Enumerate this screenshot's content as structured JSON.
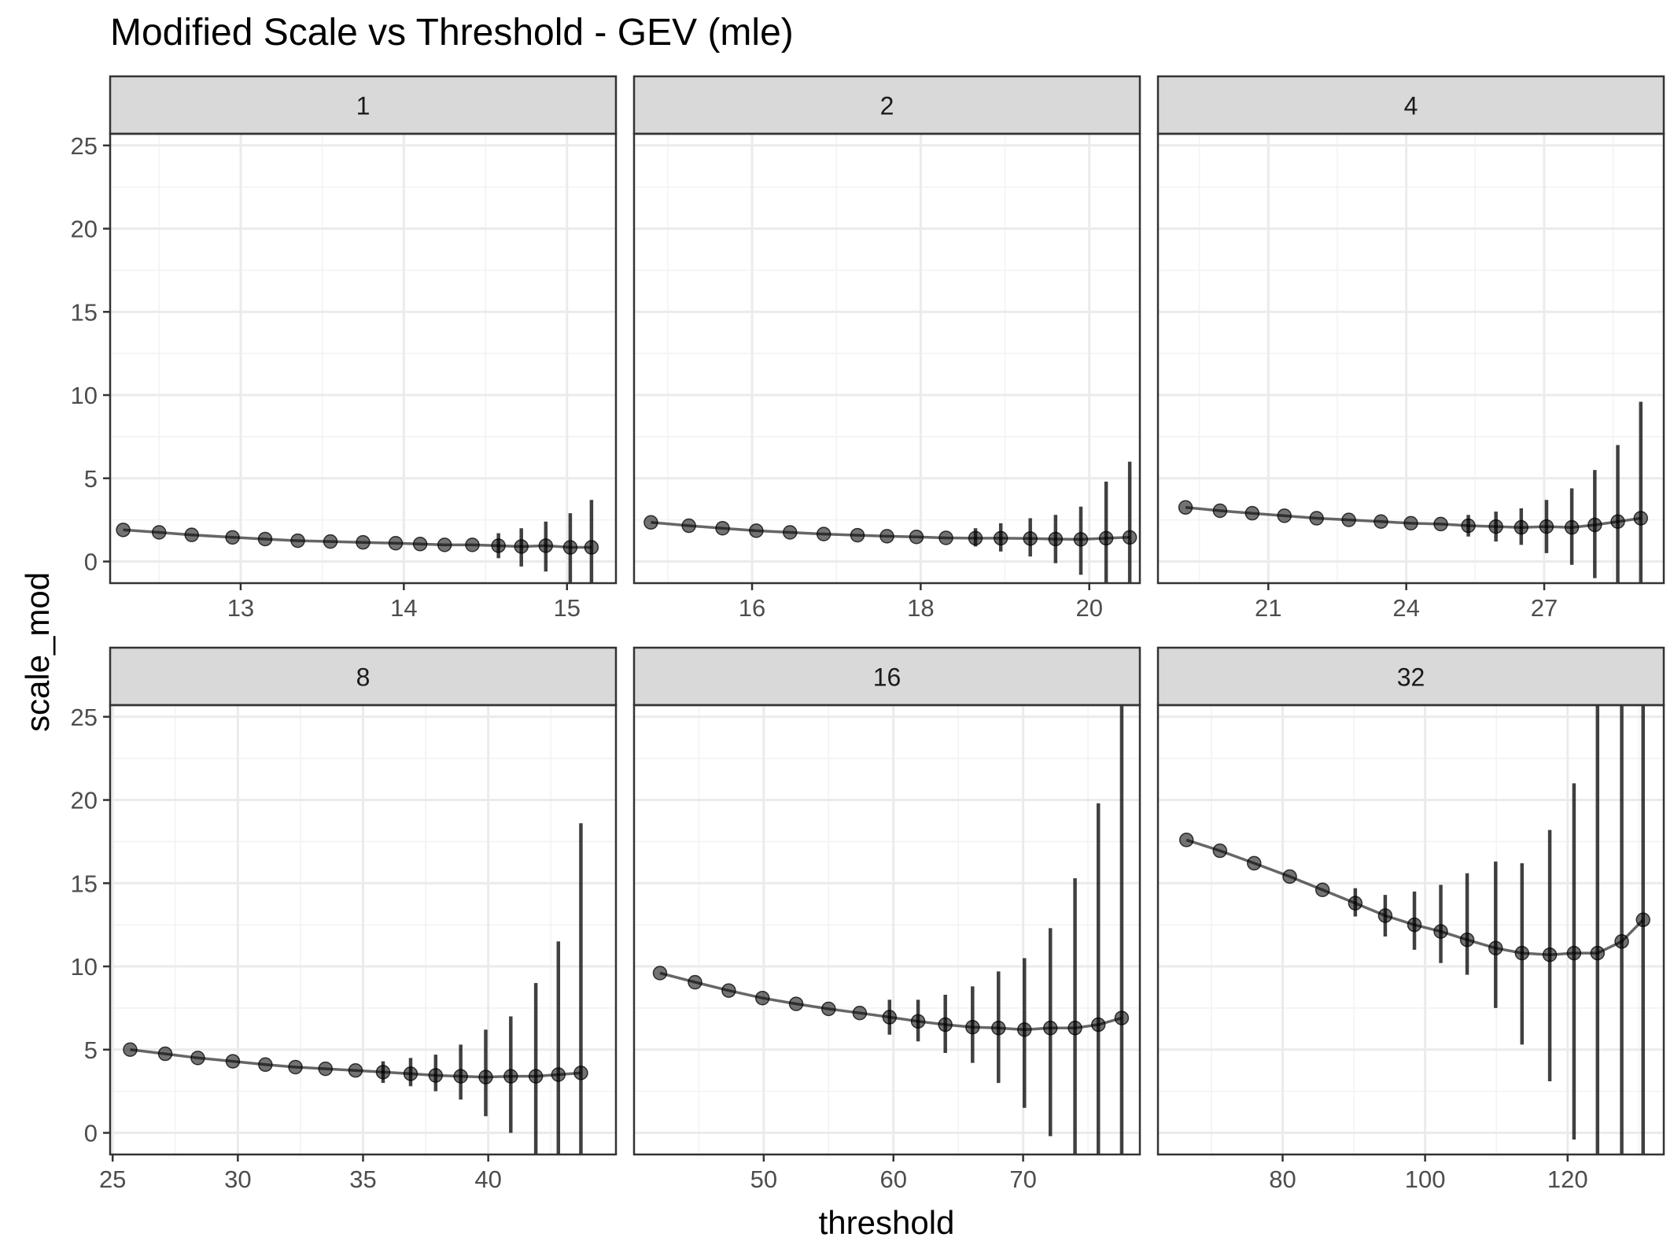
{
  "chart_data": {
    "type": "scatter",
    "title": "Modified Scale vs Threshold - GEV (mle)",
    "xlabel": "threshold",
    "ylabel": "scale_mod",
    "grid": true,
    "y_ticks": [
      0,
      5,
      10,
      15,
      20,
      25
    ],
    "y_range": [
      -1.3,
      25.7
    ],
    "panels": [
      {
        "strip": "1",
        "x_range": [
          12.2,
          15.3
        ],
        "x_ticks": [
          13,
          14,
          15
        ],
        "points": [
          [
            12.28,
            1.9
          ],
          [
            12.5,
            1.75
          ],
          [
            12.7,
            1.6
          ],
          [
            12.95,
            1.45
          ],
          [
            13.15,
            1.35
          ],
          [
            13.35,
            1.25
          ],
          [
            13.55,
            1.2
          ],
          [
            13.75,
            1.15
          ],
          [
            13.95,
            1.1
          ],
          [
            14.1,
            1.05
          ],
          [
            14.25,
            1.0
          ],
          [
            14.42,
            1.0
          ],
          [
            14.58,
            0.95
          ],
          [
            14.72,
            0.9
          ],
          [
            14.87,
            0.95
          ],
          [
            15.02,
            0.85
          ],
          [
            15.15,
            0.85
          ]
        ],
        "errorbars": [
          [
            14.58,
            0.2,
            1.7
          ],
          [
            14.72,
            -0.3,
            2.0
          ],
          [
            14.87,
            -0.6,
            2.4
          ],
          [
            15.02,
            -1.3,
            2.9
          ],
          [
            15.15,
            -1.3,
            3.7
          ]
        ]
      },
      {
        "strip": "2",
        "x_range": [
          14.6,
          20.6
        ],
        "x_ticks": [
          16,
          18,
          20
        ],
        "points": [
          [
            14.8,
            2.35
          ],
          [
            15.25,
            2.15
          ],
          [
            15.65,
            2.0
          ],
          [
            16.05,
            1.85
          ],
          [
            16.45,
            1.75
          ],
          [
            16.85,
            1.65
          ],
          [
            17.25,
            1.58
          ],
          [
            17.6,
            1.52
          ],
          [
            17.95,
            1.48
          ],
          [
            18.3,
            1.42
          ],
          [
            18.65,
            1.4
          ],
          [
            18.95,
            1.4
          ],
          [
            19.3,
            1.38
          ],
          [
            19.6,
            1.35
          ],
          [
            19.9,
            1.33
          ],
          [
            20.2,
            1.4
          ],
          [
            20.48,
            1.45
          ]
        ],
        "errorbars": [
          [
            18.65,
            0.9,
            2.0
          ],
          [
            18.95,
            0.6,
            2.3
          ],
          [
            19.3,
            0.3,
            2.6
          ],
          [
            19.6,
            -0.1,
            2.8
          ],
          [
            19.9,
            -0.8,
            3.3
          ],
          [
            20.2,
            -1.3,
            4.8
          ],
          [
            20.48,
            -1.3,
            6.0
          ]
        ]
      },
      {
        "strip": "4",
        "x_range": [
          18.6,
          29.6
        ],
        "x_ticks": [
          21,
          24,
          27
        ],
        "points": [
          [
            19.2,
            3.25
          ],
          [
            19.95,
            3.05
          ],
          [
            20.65,
            2.9
          ],
          [
            21.35,
            2.75
          ],
          [
            22.05,
            2.6
          ],
          [
            22.75,
            2.5
          ],
          [
            23.45,
            2.4
          ],
          [
            24.1,
            2.3
          ],
          [
            24.75,
            2.25
          ],
          [
            25.35,
            2.15
          ],
          [
            25.95,
            2.1
          ],
          [
            26.5,
            2.05
          ],
          [
            27.05,
            2.1
          ],
          [
            27.6,
            2.05
          ],
          [
            28.1,
            2.2
          ],
          [
            28.6,
            2.4
          ],
          [
            29.1,
            2.6
          ]
        ],
        "errorbars": [
          [
            25.35,
            1.5,
            2.8
          ],
          [
            25.95,
            1.2,
            3.0
          ],
          [
            26.5,
            1.0,
            3.2
          ],
          [
            27.05,
            0.5,
            3.7
          ],
          [
            27.6,
            -0.2,
            4.4
          ],
          [
            28.1,
            -1.0,
            5.5
          ],
          [
            28.6,
            -1.3,
            7.0
          ],
          [
            29.1,
            -1.3,
            9.6
          ]
        ]
      },
      {
        "strip": "8",
        "x_range": [
          24.9,
          45.1
        ],
        "x_ticks": [
          25,
          30,
          35,
          40
        ],
        "points": [
          [
            25.7,
            5.0
          ],
          [
            27.1,
            4.75
          ],
          [
            28.4,
            4.5
          ],
          [
            29.8,
            4.3
          ],
          [
            31.1,
            4.1
          ],
          [
            32.3,
            3.95
          ],
          [
            33.5,
            3.85
          ],
          [
            34.7,
            3.75
          ],
          [
            35.8,
            3.65
          ],
          [
            36.9,
            3.55
          ],
          [
            37.9,
            3.45
          ],
          [
            38.9,
            3.4
          ],
          [
            39.9,
            3.35
          ],
          [
            40.9,
            3.4
          ],
          [
            41.9,
            3.4
          ],
          [
            42.8,
            3.5
          ],
          [
            43.7,
            3.6
          ]
        ],
        "errorbars": [
          [
            35.8,
            3.0,
            4.3
          ],
          [
            36.9,
            2.8,
            4.5
          ],
          [
            37.9,
            2.5,
            4.7
          ],
          [
            38.9,
            2.0,
            5.3
          ],
          [
            39.9,
            1.0,
            6.2
          ],
          [
            40.9,
            0.0,
            7.0
          ],
          [
            41.9,
            -1.3,
            9.0
          ],
          [
            42.8,
            -1.3,
            11.5
          ],
          [
            43.7,
            -1.3,
            18.6
          ]
        ]
      },
      {
        "strip": "16",
        "x_range": [
          40.0,
          79.0
        ],
        "x_ticks": [
          50,
          60,
          70
        ],
        "points": [
          [
            42.0,
            9.6
          ],
          [
            44.7,
            9.05
          ],
          [
            47.3,
            8.55
          ],
          [
            49.9,
            8.1
          ],
          [
            52.5,
            7.75
          ],
          [
            55.0,
            7.45
          ],
          [
            57.4,
            7.2
          ],
          [
            59.7,
            6.95
          ],
          [
            61.9,
            6.7
          ],
          [
            64.0,
            6.5
          ],
          [
            66.1,
            6.35
          ],
          [
            68.1,
            6.3
          ],
          [
            70.1,
            6.2
          ],
          [
            72.1,
            6.3
          ],
          [
            74.0,
            6.3
          ],
          [
            75.8,
            6.5
          ],
          [
            77.6,
            6.9
          ]
        ],
        "errorbars": [
          [
            59.7,
            5.9,
            8.0
          ],
          [
            61.9,
            5.5,
            8.0
          ],
          [
            64.0,
            4.8,
            8.3
          ],
          [
            66.1,
            4.2,
            8.8
          ],
          [
            68.1,
            3.0,
            9.7
          ],
          [
            70.1,
            1.5,
            10.5
          ],
          [
            72.1,
            -0.2,
            12.3
          ],
          [
            74.0,
            -1.3,
            15.3
          ],
          [
            75.8,
            -1.3,
            19.8
          ],
          [
            77.6,
            -1.3,
            25.7
          ]
        ]
      },
      {
        "strip": "32",
        "x_range": [
          62.5,
          133.5
        ],
        "x_ticks": [
          80,
          100,
          120
        ],
        "points": [
          [
            66.5,
            17.6
          ],
          [
            71.2,
            16.95
          ],
          [
            76.0,
            16.2
          ],
          [
            81.0,
            15.4
          ],
          [
            85.6,
            14.6
          ],
          [
            90.2,
            13.8
          ],
          [
            94.4,
            13.05
          ],
          [
            98.5,
            12.5
          ],
          [
            102.2,
            12.1
          ],
          [
            105.9,
            11.6
          ],
          [
            109.9,
            11.1
          ],
          [
            113.6,
            10.8
          ],
          [
            117.5,
            10.7
          ],
          [
            120.9,
            10.8
          ],
          [
            124.2,
            10.8
          ],
          [
            127.6,
            11.5
          ],
          [
            130.6,
            12.8
          ]
        ],
        "errorbars": [
          [
            90.2,
            13.0,
            14.7
          ],
          [
            94.4,
            11.8,
            14.3
          ],
          [
            98.5,
            11.0,
            14.5
          ],
          [
            102.2,
            10.2,
            14.9
          ],
          [
            105.9,
            9.5,
            15.6
          ],
          [
            109.9,
            7.5,
            16.3
          ],
          [
            113.6,
            5.3,
            16.2
          ],
          [
            117.5,
            3.1,
            18.2
          ],
          [
            120.9,
            -0.4,
            21.0
          ],
          [
            124.2,
            -1.3,
            25.7
          ],
          [
            127.6,
            -1.3,
            25.7
          ],
          [
            130.6,
            -1.3,
            25.7
          ]
        ]
      }
    ]
  }
}
